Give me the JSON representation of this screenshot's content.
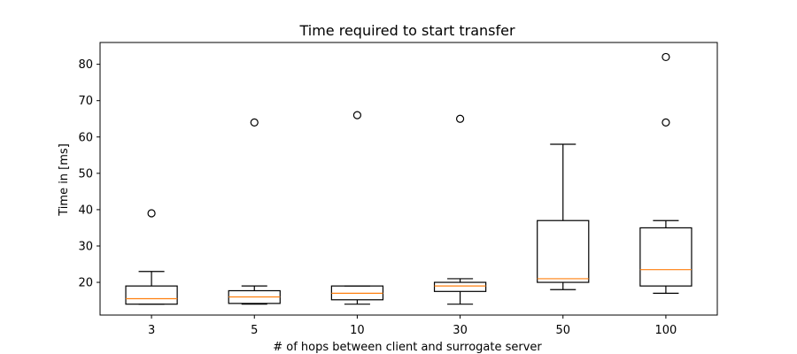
{
  "chart_data": {
    "type": "box",
    "title": "Time required to start transfer",
    "xlabel": "# of hops between client and surrogate server",
    "ylabel": "Time in [ms]",
    "ylim": [
      11,
      86
    ],
    "yticks": [
      20,
      30,
      40,
      50,
      60,
      70,
      80
    ],
    "grid": false,
    "categories": [
      "3",
      "5",
      "10",
      "30",
      "50",
      "100"
    ],
    "boxes": [
      {
        "category": "3",
        "whisker_low": 14,
        "q1": 14,
        "median": 15.5,
        "q3": 19,
        "whisker_high": 23,
        "outliers": [
          39
        ]
      },
      {
        "category": "5",
        "whisker_low": 14,
        "q1": 14.2,
        "median": 16,
        "q3": 17.7,
        "whisker_high": 19,
        "outliers": [
          64
        ]
      },
      {
        "category": "10",
        "whisker_low": 14,
        "q1": 15.2,
        "median": 17,
        "q3": 19,
        "whisker_high": 19,
        "outliers": [
          66
        ]
      },
      {
        "category": "30",
        "whisker_low": 14,
        "q1": 17.5,
        "median": 19,
        "q3": 20,
        "whisker_high": 21,
        "outliers": [
          65
        ]
      },
      {
        "category": "50",
        "whisker_low": 18,
        "q1": 20,
        "median": 21,
        "q3": 37,
        "whisker_high": 58,
        "outliers": []
      },
      {
        "category": "100",
        "whisker_low": 17,
        "q1": 19,
        "median": 23.5,
        "q3": 35,
        "whisker_high": 37,
        "outliers": [
          64,
          82
        ]
      }
    ],
    "colors": {
      "box": "#000000",
      "median": "#ff7f0e",
      "axes": "#000000"
    }
  }
}
